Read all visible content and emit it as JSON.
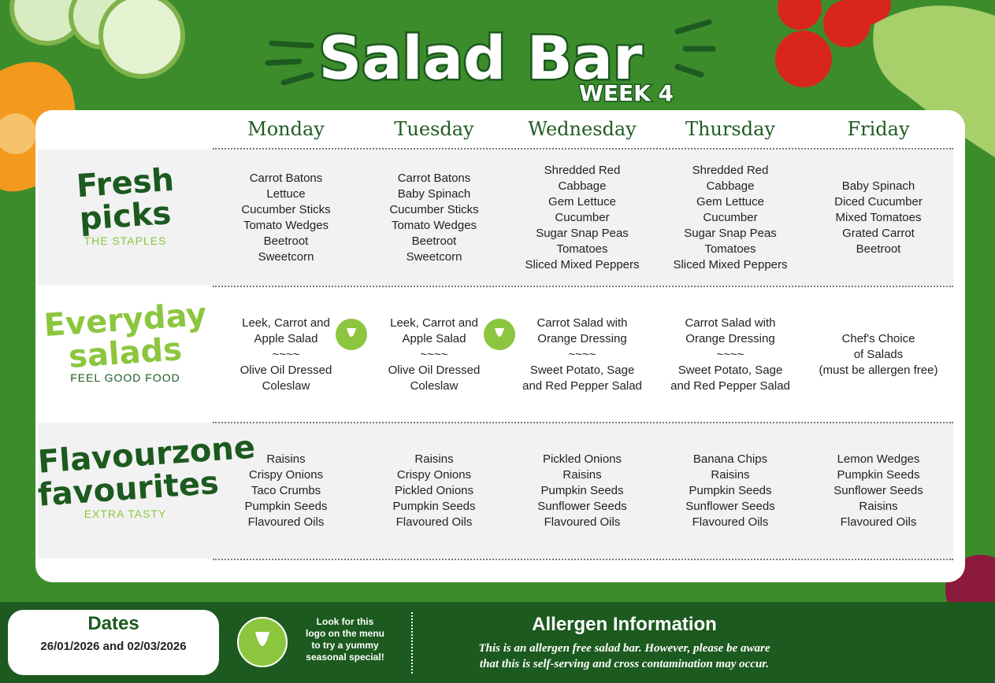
{
  "header": {
    "title": "Salad Bar",
    "subtitle": "WEEK 4"
  },
  "days": [
    "Monday",
    "Tuesday",
    "Wednesday",
    "Thursday",
    "Friday"
  ],
  "sections": [
    {
      "title": [
        "Fresh",
        "picks"
      ],
      "tagline": "THE STAPLES",
      "cells": [
        [
          "Carrot Batons",
          "Lettuce",
          "Cucumber Sticks",
          "Tomato Wedges",
          "Beetroot",
          "Sweetcorn"
        ],
        [
          "Carrot Batons",
          "Baby Spinach",
          "Cucumber Sticks",
          "Tomato Wedges",
          "Beetroot",
          "Sweetcorn"
        ],
        [
          "Shredded Red",
          "Cabbage",
          "Gem Lettuce",
          "Cucumber",
          "Sugar Snap Peas",
          "Tomatoes",
          "Sliced Mixed Peppers"
        ],
        [
          "Shredded Red",
          "Cabbage",
          "Gem Lettuce",
          "Cucumber",
          "Sugar Snap Peas",
          "Tomatoes",
          "Sliced Mixed Peppers"
        ],
        [
          "Baby Spinach",
          "Diced Cucumber",
          "Mixed Tomatoes",
          "Grated Carrot",
          "Beetroot"
        ]
      ]
    },
    {
      "title": [
        "Everyday",
        "salads"
      ],
      "tagline": "FEEL GOOD FOOD",
      "cells": [
        [
          "Leek, Carrot and",
          "Apple Salad",
          "~~~~",
          "Olive Oil Dressed",
          "Coleslaw"
        ],
        [
          "Leek, Carrot and",
          "Apple Salad",
          "~~~~",
          "Olive Oil Dressed",
          "Coleslaw"
        ],
        [
          "Carrot Salad with",
          "Orange Dressing",
          "~~~~",
          "Sweet Potato, Sage",
          "and Red Pepper Salad"
        ],
        [
          "Carrot Salad with",
          "Orange Dressing",
          "~~~~",
          "Sweet Potato, Sage",
          "and Red Pepper Salad"
        ],
        [
          "Chef's Choice",
          "of Salads",
          "(must be allergen free)"
        ]
      ]
    },
    {
      "title": [
        "Flavourzone",
        "favourites"
      ],
      "tagline": "EXTRA TASTY",
      "cells": [
        [
          "Raisins",
          "Crispy Onions",
          "Taco Crumbs",
          "Pumpkin Seeds",
          "Flavoured Oils"
        ],
        [
          "Raisins",
          "Crispy Onions",
          "Pickled Onions",
          "Pumpkin Seeds",
          "Flavoured Oils"
        ],
        [
          "Pickled Onions",
          "Raisins",
          "Pumpkin Seeds",
          "Sunflower Seeds",
          "Flavoured Oils"
        ],
        [
          "Banana Chips",
          "Raisins",
          "Pumpkin Seeds",
          "Sunflower Seeds",
          "Flavoured Oils"
        ],
        [
          "Lemon Wedges",
          "Pumpkin Seeds",
          "Sunflower Seeds",
          "Raisins",
          "Flavoured Oils"
        ]
      ]
    }
  ],
  "footer": {
    "dates_title": "Dates",
    "dates": "26/01/2026 and 02/03/2026",
    "logo_note": [
      "Look for this",
      "logo on the menu",
      "to try a yummy",
      "seasonal special!"
    ],
    "allergen_title": "Allergen Information",
    "allergen_text": [
      "This is an allergen free salad bar. However, please be aware",
      "that this is self-serving and cross contamination may occur."
    ]
  }
}
